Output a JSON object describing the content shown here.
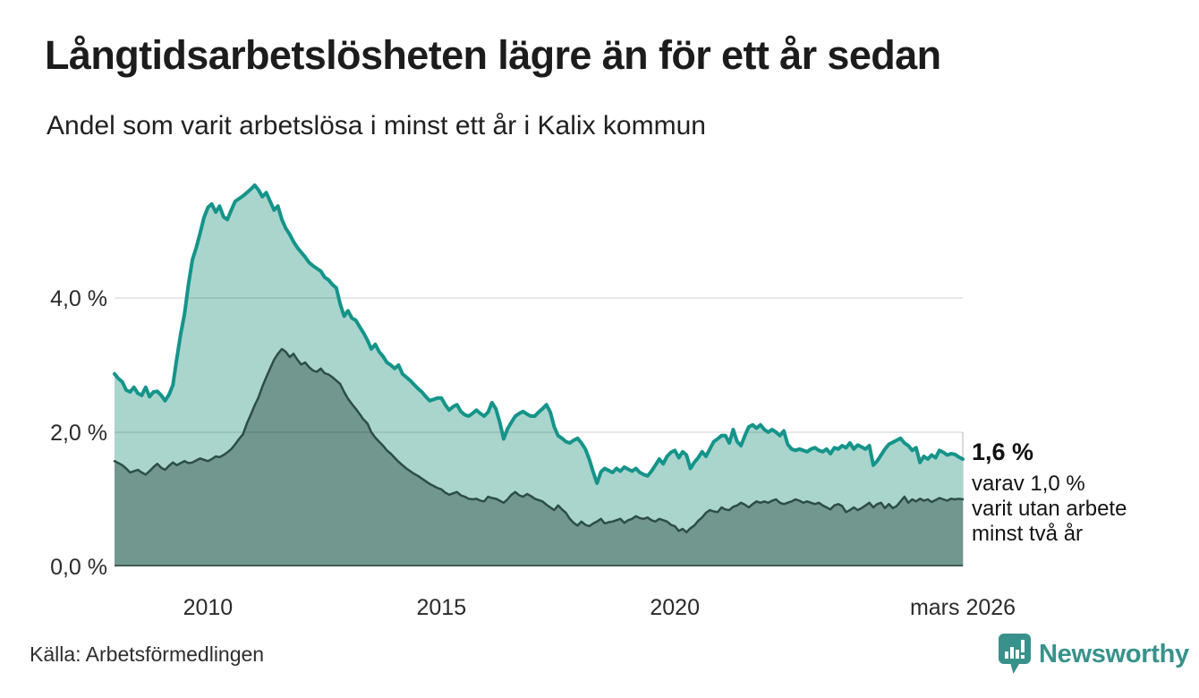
{
  "chart_data": {
    "type": "area",
    "title": "Långtidsarbetslösheten lägre än för ett år sedan",
    "subtitle": "Andel som varit arbetslösa i minst ett år i Kalix kommun",
    "x_unit": "month",
    "x_range": [
      "2008-01",
      "2026-03"
    ],
    "ylim": [
      0,
      6
    ],
    "grid": "horizontal",
    "y_ticks": [
      {
        "value": 0,
        "label": "0,0 %"
      },
      {
        "value": 2,
        "label": "2,0 %"
      },
      {
        "value": 4,
        "label": "4,0 %"
      }
    ],
    "x_ticks": [
      {
        "index": 24,
        "label": "2010"
      },
      {
        "index": 84,
        "label": "2015"
      },
      {
        "index": 144,
        "label": "2020"
      },
      {
        "index": 218,
        "label": "mars 2026"
      }
    ],
    "end_labels": {
      "value": "1,6 %",
      "lines": [
        "varav 1,0 %",
        "varit utan arbete",
        "minst två år"
      ]
    },
    "series": [
      {
        "id": "total",
        "name": "Andel som varit arbetslösa i minst ett år",
        "line_color": "#15948a",
        "fill_color": "#a9d5cd",
        "values": [
          2.87,
          2.8,
          2.75,
          2.63,
          2.6,
          2.67,
          2.58,
          2.55,
          2.67,
          2.53,
          2.6,
          2.61,
          2.55,
          2.47,
          2.56,
          2.7,
          3.1,
          3.46,
          3.77,
          4.2,
          4.57,
          4.75,
          4.97,
          5.2,
          5.35,
          5.4,
          5.28,
          5.37,
          5.21,
          5.17,
          5.31,
          5.44,
          5.48,
          5.52,
          5.57,
          5.62,
          5.68,
          5.61,
          5.51,
          5.57,
          5.44,
          5.31,
          5.37,
          5.17,
          5.04,
          4.95,
          4.84,
          4.75,
          4.68,
          4.61,
          4.53,
          4.48,
          4.44,
          4.4,
          4.31,
          4.27,
          4.2,
          4.15,
          3.91,
          3.73,
          3.81,
          3.7,
          3.67,
          3.57,
          3.48,
          3.37,
          3.24,
          3.31,
          3.2,
          3.13,
          3.04,
          3.0,
          2.95,
          3.0,
          2.87,
          2.82,
          2.77,
          2.71,
          2.65,
          2.6,
          2.53,
          2.47,
          2.49,
          2.51,
          2.51,
          2.41,
          2.33,
          2.38,
          2.41,
          2.31,
          2.26,
          2.24,
          2.28,
          2.33,
          2.28,
          2.24,
          2.3,
          2.44,
          2.35,
          2.15,
          1.9,
          2.05,
          2.15,
          2.24,
          2.28,
          2.31,
          2.27,
          2.24,
          2.24,
          2.3,
          2.35,
          2.41,
          2.3,
          2.08,
          1.95,
          1.91,
          1.86,
          1.84,
          1.88,
          1.91,
          1.84,
          1.75,
          1.6,
          1.41,
          1.24,
          1.41,
          1.46,
          1.43,
          1.4,
          1.46,
          1.42,
          1.48,
          1.45,
          1.42,
          1.46,
          1.4,
          1.37,
          1.35,
          1.42,
          1.51,
          1.6,
          1.53,
          1.64,
          1.7,
          1.73,
          1.62,
          1.71,
          1.66,
          1.46,
          1.55,
          1.62,
          1.71,
          1.64,
          1.75,
          1.86,
          1.9,
          1.95,
          1.95,
          1.84,
          2.04,
          1.86,
          1.8,
          1.95,
          2.08,
          2.11,
          2.06,
          2.11,
          2.04,
          2.0,
          2.04,
          2.0,
          1.95,
          2.02,
          1.82,
          1.75,
          1.73,
          1.75,
          1.73,
          1.71,
          1.75,
          1.77,
          1.73,
          1.71,
          1.75,
          1.68,
          1.77,
          1.75,
          1.8,
          1.77,
          1.84,
          1.75,
          1.81,
          1.78,
          1.75,
          1.8,
          1.51,
          1.57,
          1.66,
          1.75,
          1.82,
          1.85,
          1.88,
          1.91,
          1.84,
          1.8,
          1.73,
          1.77,
          1.55,
          1.64,
          1.6,
          1.66,
          1.62,
          1.73,
          1.7,
          1.66,
          1.68,
          1.67,
          1.63,
          1.6
        ]
      },
      {
        "id": "two-years",
        "name": "varav varit utan arbete minst två år",
        "line_color": "#2d4d46",
        "fill_color": "#71978f",
        "values": [
          1.57,
          1.54,
          1.51,
          1.46,
          1.4,
          1.42,
          1.44,
          1.4,
          1.37,
          1.42,
          1.48,
          1.53,
          1.47,
          1.44,
          1.5,
          1.55,
          1.51,
          1.54,
          1.57,
          1.54,
          1.55,
          1.58,
          1.61,
          1.59,
          1.57,
          1.6,
          1.64,
          1.63,
          1.66,
          1.7,
          1.75,
          1.82,
          1.9,
          1.97,
          2.13,
          2.26,
          2.4,
          2.52,
          2.68,
          2.82,
          2.95,
          3.08,
          3.17,
          3.24,
          3.2,
          3.12,
          3.17,
          3.08,
          3.01,
          3.04,
          2.97,
          2.92,
          2.9,
          2.95,
          2.88,
          2.86,
          2.82,
          2.77,
          2.72,
          2.6,
          2.5,
          2.42,
          2.35,
          2.27,
          2.19,
          2.13,
          2.0,
          1.92,
          1.86,
          1.8,
          1.73,
          1.68,
          1.62,
          1.56,
          1.51,
          1.46,
          1.42,
          1.38,
          1.35,
          1.31,
          1.27,
          1.23,
          1.2,
          1.17,
          1.15,
          1.1,
          1.07,
          1.09,
          1.11,
          1.06,
          1.04,
          1.01,
          1.0,
          1.01,
          0.98,
          0.97,
          1.04,
          1.02,
          1.01,
          0.98,
          0.95,
          1.0,
          1.07,
          1.11,
          1.06,
          1.04,
          1.08,
          1.05,
          1.01,
          0.99,
          0.97,
          0.92,
          0.88,
          0.84,
          0.91,
          0.85,
          0.8,
          0.71,
          0.65,
          0.61,
          0.67,
          0.62,
          0.6,
          0.64,
          0.67,
          0.71,
          0.64,
          0.66,
          0.67,
          0.69,
          0.71,
          0.65,
          0.69,
          0.71,
          0.75,
          0.72,
          0.71,
          0.73,
          0.69,
          0.67,
          0.71,
          0.69,
          0.67,
          0.62,
          0.6,
          0.53,
          0.56,
          0.51,
          0.57,
          0.61,
          0.68,
          0.73,
          0.8,
          0.84,
          0.82,
          0.81,
          0.88,
          0.85,
          0.84,
          0.89,
          0.91,
          0.95,
          0.92,
          0.88,
          0.93,
          0.97,
          0.95,
          0.97,
          0.95,
          0.98,
          1.0,
          0.95,
          0.93,
          0.95,
          0.97,
          1.0,
          0.98,
          0.95,
          0.97,
          0.95,
          0.93,
          0.95,
          0.91,
          0.88,
          0.85,
          0.91,
          0.93,
          0.9,
          0.81,
          0.84,
          0.88,
          0.84,
          0.87,
          0.91,
          0.95,
          0.88,
          0.93,
          0.95,
          0.87,
          0.93,
          0.87,
          0.9,
          0.97,
          1.04,
          0.95,
          1.0,
          0.97,
          1.01,
          0.98,
          1.0,
          0.96,
          0.99,
          1.02,
          1.0,
          0.98,
          1.01,
          1.0,
          1.01,
          1.0
        ]
      }
    ]
  },
  "footer": {
    "source": "Källa: Arbetsförmedlingen",
    "brand": "Newsworthy"
  },
  "colors": {
    "accent_teal": "#15948a",
    "light_fill": "#a9d5cd",
    "dark_fill": "#71978f",
    "dark_line": "#2d4d46",
    "axis_text": "#2b2b2b",
    "baseline": "#3f5b53",
    "brand_teal": "#38928b"
  }
}
